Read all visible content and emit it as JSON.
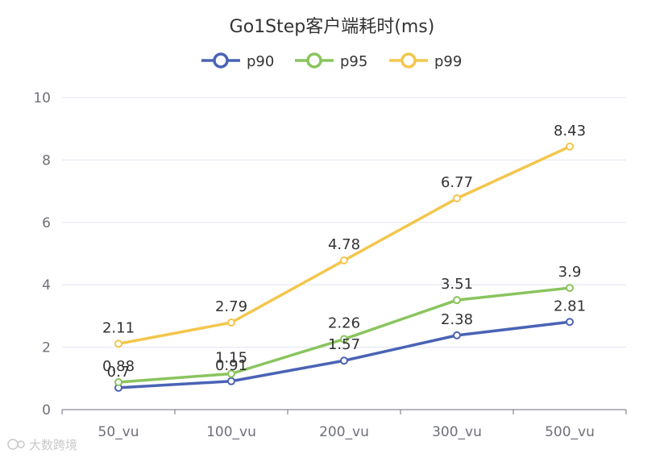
{
  "chart_data": {
    "type": "line",
    "title": "Go1Step客户端耗时(ms)",
    "categories": [
      "50_vu",
      "100_vu",
      "200_vu",
      "300_vu",
      "500_vu"
    ],
    "ylim": [
      0,
      10
    ],
    "yticks": [
      0,
      2,
      4,
      6,
      8,
      10
    ],
    "legend_position": "top-center",
    "grid": true,
    "series": [
      {
        "name": "p90",
        "color": "#4a63b5",
        "values": [
          0.7,
          0.91,
          1.57,
          2.38,
          2.81
        ]
      },
      {
        "name": "p95",
        "color": "#8ac45e",
        "values": [
          0.88,
          1.15,
          2.26,
          3.51,
          3.9
        ]
      },
      {
        "name": "p99",
        "color": "#f3c64d",
        "values": [
          2.11,
          2.79,
          4.78,
          6.77,
          8.43
        ]
      }
    ]
  },
  "watermark": {
    "text": "大数跨境"
  }
}
